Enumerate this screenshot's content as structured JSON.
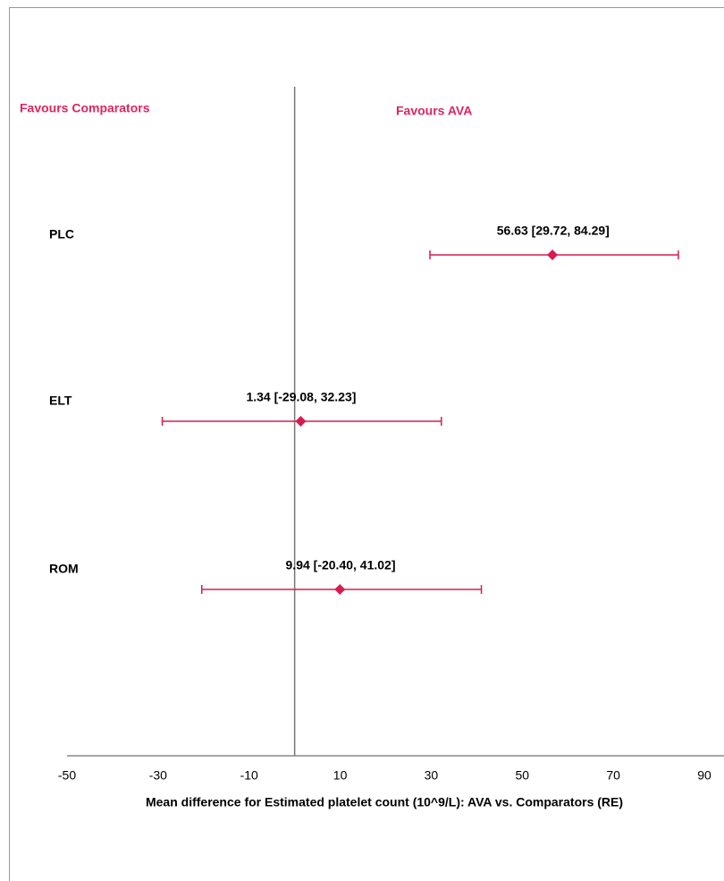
{
  "chart_data": {
    "type": "forest",
    "categories": [
      "PLC",
      "ELT",
      "ROM"
    ],
    "values": [
      56.63,
      1.34,
      9.94
    ],
    "lower": [
      29.72,
      -29.08,
      -20.4
    ],
    "upper": [
      84.29,
      32.23,
      41.02
    ],
    "value_labels": [
      "56.63 [29.72, 84.29]",
      "1.34 [-29.08, 32.23]",
      "9.94 [-20.40, 41.02]"
    ],
    "color": "#d81b4f",
    "annotation_color": "#e0245e",
    "xlabel": "Mean difference for Estimated platelet count (10^9/L): AVA vs. Comparators  (RE)",
    "annotations": [
      "Favours Comparators",
      "Favours AVA"
    ],
    "xlim": [
      -50,
      90
    ],
    "xticks": [
      -50,
      -30,
      -10,
      10,
      30,
      50,
      70,
      90
    ],
    "reference_line": 0
  }
}
